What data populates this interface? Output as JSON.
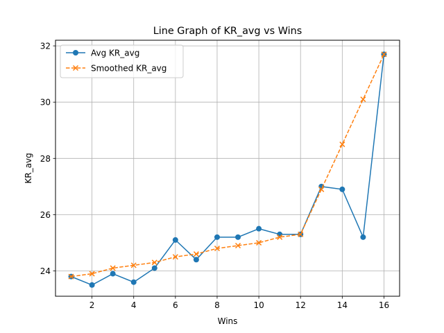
{
  "chart_data": {
    "type": "line",
    "title": "Line Graph of KR_avg vs Wins",
    "xlabel": "Wins",
    "ylabel": "KR_avg",
    "x": [
      1,
      2,
      3,
      4,
      5,
      6,
      7,
      8,
      9,
      10,
      11,
      12,
      13,
      14,
      15,
      16
    ],
    "xlim": [
      0.25,
      16.75
    ],
    "ylim": [
      23.1,
      32.2
    ],
    "xticks": [
      2,
      4,
      6,
      8,
      10,
      12,
      14,
      16
    ],
    "yticks": [
      24,
      26,
      28,
      30,
      32
    ],
    "grid": true,
    "legend_position": "upper-left",
    "series": [
      {
        "name": "Avg KR_avg",
        "color": "#1f77b4",
        "linestyle": "solid",
        "marker": "circle",
        "values": [
          23.8,
          23.5,
          23.9,
          23.6,
          24.1,
          25.1,
          24.4,
          25.2,
          25.2,
          25.5,
          25.3,
          25.3,
          27.0,
          26.9,
          25.2,
          31.7
        ]
      },
      {
        "name": "Smoothed KR_avg",
        "color": "#ff7f0e",
        "linestyle": "dashed",
        "marker": "x",
        "values": [
          23.8,
          23.9,
          24.1,
          24.2,
          24.3,
          24.5,
          24.6,
          24.8,
          24.9,
          25.0,
          25.2,
          25.3,
          26.9,
          28.5,
          30.1,
          31.7
        ]
      }
    ]
  }
}
